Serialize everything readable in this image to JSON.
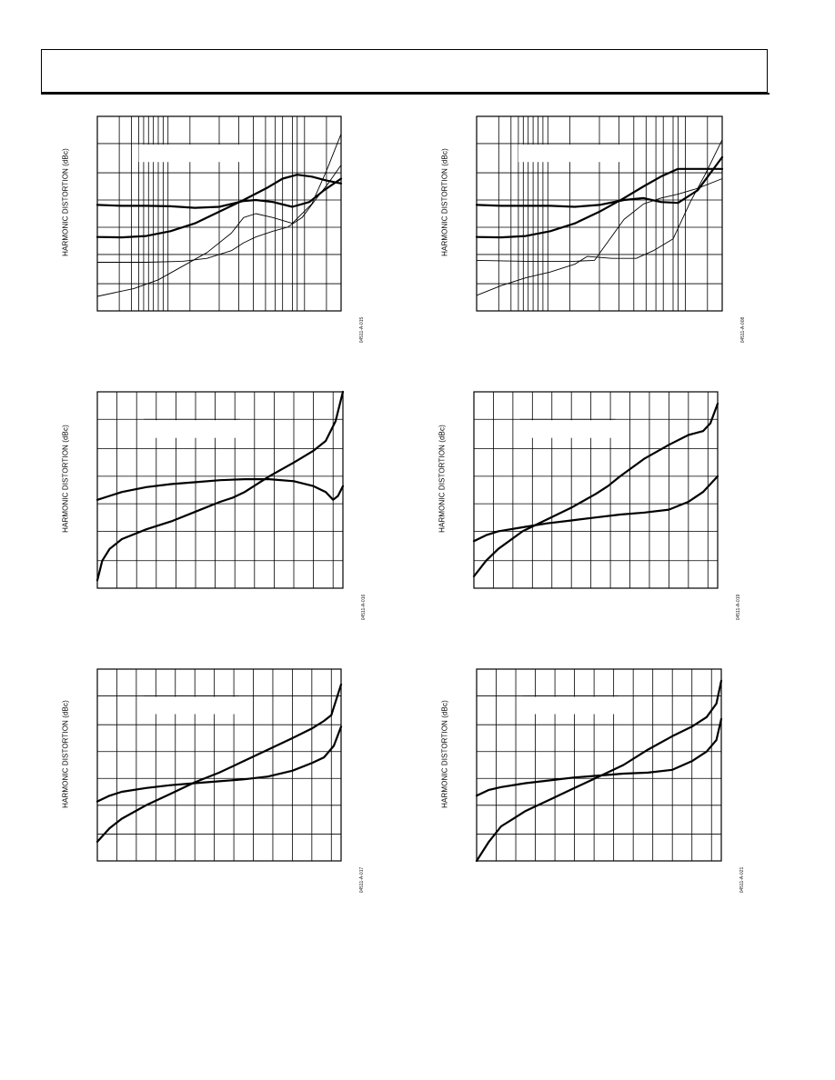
{
  "page": {
    "header_title": ""
  },
  "charts": [
    {
      "id": "c1",
      "ylabel": "HARMONIC DISTORTION (dBc)",
      "figure_id": "04511-A-015",
      "x_scale": "log",
      "series_style": [
        "thick",
        "thick",
        "thin",
        "thin"
      ]
    },
    {
      "id": "c2",
      "ylabel": "HARMONIC DISTORTION (dBc)",
      "figure_id": "04511-A-008",
      "x_scale": "log",
      "series_style": [
        "thick",
        "thick",
        "thin",
        "thin"
      ]
    },
    {
      "id": "c3",
      "ylabel": "HARMONIC DISTORTION (dBc)",
      "figure_id": "04511-A-016",
      "x_scale": "linear",
      "series_style": [
        "thick",
        "thick"
      ]
    },
    {
      "id": "c4",
      "ylabel": "HARMONIC DISTORTION (dBc)",
      "figure_id": "04511-A-019",
      "x_scale": "linear",
      "series_style": [
        "thick",
        "thick"
      ]
    },
    {
      "id": "c5",
      "ylabel": "HARMONIC DISTORTION (dBc)",
      "figure_id": "04511-A-017",
      "x_scale": "linear",
      "series_style": [
        "thick",
        "thick"
      ]
    },
    {
      "id": "c6",
      "ylabel": "HARMONIC DISTORTION (dBc)",
      "figure_id": "04511-A-021",
      "x_scale": "linear",
      "series_style": [
        "thick",
        "thick"
      ]
    }
  ],
  "chart_data": [
    {
      "type": "line",
      "title": "",
      "ylabel": "HARMONIC DISTORTION (dBc)",
      "xlabel": "",
      "x_scale": "log",
      "xlim": [
        0,
        1
      ],
      "ylim": [
        0,
        1
      ],
      "grid": true,
      "series": [
        {
          "x": [
            0,
            0.1,
            0.2,
            0.3,
            0.4,
            0.5,
            0.55,
            0.6,
            0.65,
            0.72,
            0.8,
            0.87,
            0.93,
            1.0
          ],
          "y": [
            0.545,
            0.54,
            0.54,
            0.538,
            0.53,
            0.535,
            0.55,
            0.565,
            0.57,
            0.56,
            0.535,
            0.56,
            0.62,
            0.68
          ]
        },
        {
          "x": [
            0,
            0.1,
            0.2,
            0.3,
            0.4,
            0.5,
            0.6,
            0.7,
            0.76,
            0.82,
            0.88,
            0.94,
            1.0
          ],
          "y": [
            0.38,
            0.378,
            0.385,
            0.41,
            0.45,
            0.51,
            0.57,
            0.635,
            0.68,
            0.7,
            0.69,
            0.67,
            0.655
          ]
        },
        {
          "x": [
            0,
            0.15,
            0.25,
            0.35,
            0.45,
            0.55,
            0.6,
            0.65,
            0.72,
            0.8,
            0.88,
            0.94,
            1.0
          ],
          "y": [
            0.075,
            0.115,
            0.16,
            0.23,
            0.3,
            0.4,
            0.48,
            0.5,
            0.48,
            0.45,
            0.55,
            0.72,
            0.91
          ]
        },
        {
          "x": [
            0,
            0.2,
            0.35,
            0.45,
            0.55,
            0.6,
            0.65,
            0.72,
            0.78,
            0.84,
            0.9,
            0.95,
            1.0
          ],
          "y": [
            0.25,
            0.25,
            0.255,
            0.27,
            0.31,
            0.35,
            0.38,
            0.41,
            0.43,
            0.48,
            0.58,
            0.66,
            0.75
          ]
        }
      ]
    },
    {
      "type": "line",
      "title": "",
      "ylabel": "HARMONIC DISTORTION (dBc)",
      "xlabel": "",
      "x_scale": "log",
      "xlim": [
        0,
        1
      ],
      "ylim": [
        0,
        1
      ],
      "grid": true,
      "series": [
        {
          "x": [
            0,
            0.1,
            0.2,
            0.3,
            0.4,
            0.5,
            0.6,
            0.68,
            0.75,
            0.82,
            0.9,
            1.0
          ],
          "y": [
            0.545,
            0.54,
            0.54,
            0.54,
            0.535,
            0.545,
            0.57,
            0.58,
            0.56,
            0.555,
            0.62,
            0.79
          ]
        },
        {
          "x": [
            0,
            0.1,
            0.2,
            0.3,
            0.4,
            0.5,
            0.6,
            0.68,
            0.75,
            0.82,
            0.9,
            1.0
          ],
          "y": [
            0.38,
            0.378,
            0.385,
            0.41,
            0.45,
            0.51,
            0.58,
            0.64,
            0.69,
            0.73,
            0.73,
            0.73
          ]
        },
        {
          "x": [
            0,
            0.2,
            0.4,
            0.48,
            0.52,
            0.6,
            0.68,
            0.75,
            0.82,
            0.9,
            1.0
          ],
          "y": [
            0.26,
            0.255,
            0.255,
            0.26,
            0.33,
            0.47,
            0.55,
            0.58,
            0.6,
            0.63,
            0.68
          ]
        },
        {
          "x": [
            0,
            0.1,
            0.2,
            0.3,
            0.4,
            0.45,
            0.55,
            0.65,
            0.72,
            0.8,
            0.87,
            0.93,
            1.0
          ],
          "y": [
            0.08,
            0.13,
            0.17,
            0.2,
            0.24,
            0.28,
            0.27,
            0.27,
            0.31,
            0.37,
            0.56,
            0.7,
            0.88
          ]
        }
      ]
    },
    {
      "type": "line",
      "title": "",
      "ylabel": "HARMONIC DISTORTION (dBc)",
      "xlabel": "",
      "x_scale": "linear",
      "xlim": [
        0,
        1
      ],
      "ylim": [
        0,
        1
      ],
      "grid": true,
      "series": [
        {
          "x": [
            0,
            0.05,
            0.1,
            0.2,
            0.3,
            0.4,
            0.5,
            0.6,
            0.7,
            0.8,
            0.88,
            0.93,
            0.96,
            0.98,
            1.0
          ],
          "y": [
            0.45,
            0.47,
            0.49,
            0.515,
            0.53,
            0.54,
            0.55,
            0.555,
            0.555,
            0.545,
            0.52,
            0.49,
            0.45,
            0.47,
            0.52
          ]
        },
        {
          "x": [
            0,
            0.02,
            0.05,
            0.1,
            0.2,
            0.3,
            0.4,
            0.5,
            0.55,
            0.6,
            0.7,
            0.8,
            0.88,
            0.93,
            0.97,
            1.0
          ],
          "y": [
            0.04,
            0.14,
            0.2,
            0.25,
            0.3,
            0.34,
            0.39,
            0.44,
            0.46,
            0.49,
            0.57,
            0.64,
            0.7,
            0.75,
            0.85,
            1.0
          ]
        }
      ]
    },
    {
      "type": "line",
      "title": "",
      "ylabel": "HARMONIC DISTORTION (dBc)",
      "xlabel": "",
      "x_scale": "linear",
      "xlim": [
        0,
        1
      ],
      "ylim": [
        0,
        1
      ],
      "grid": true,
      "series": [
        {
          "x": [
            0,
            0.05,
            0.1,
            0.2,
            0.3,
            0.4,
            0.5,
            0.6,
            0.7,
            0.8,
            0.88,
            0.94,
            1.0
          ],
          "y": [
            0.24,
            0.27,
            0.29,
            0.31,
            0.33,
            0.345,
            0.36,
            0.375,
            0.385,
            0.4,
            0.44,
            0.49,
            0.57
          ]
        },
        {
          "x": [
            0,
            0.05,
            0.1,
            0.2,
            0.3,
            0.4,
            0.5,
            0.55,
            0.6,
            0.7,
            0.8,
            0.88,
            0.94,
            0.97,
            1.0
          ],
          "y": [
            0.06,
            0.14,
            0.2,
            0.29,
            0.35,
            0.41,
            0.48,
            0.52,
            0.57,
            0.66,
            0.73,
            0.78,
            0.8,
            0.84,
            0.94
          ]
        }
      ]
    },
    {
      "type": "line",
      "title": "",
      "ylabel": "HARMONIC DISTORTION (dBc)",
      "xlabel": "",
      "x_scale": "linear",
      "xlim": [
        0,
        1
      ],
      "ylim": [
        0,
        1
      ],
      "grid": true,
      "series": [
        {
          "x": [
            0,
            0.05,
            0.1,
            0.2,
            0.3,
            0.4,
            0.5,
            0.6,
            0.7,
            0.8,
            0.88,
            0.93,
            0.97,
            1.0
          ],
          "y": [
            0.31,
            0.34,
            0.36,
            0.38,
            0.395,
            0.405,
            0.415,
            0.425,
            0.44,
            0.47,
            0.51,
            0.54,
            0.6,
            0.7
          ]
        },
        {
          "x": [
            0,
            0.05,
            0.1,
            0.2,
            0.3,
            0.4,
            0.5,
            0.6,
            0.7,
            0.8,
            0.88,
            0.93,
            0.96,
            0.98,
            1.0
          ],
          "y": [
            0.1,
            0.17,
            0.22,
            0.29,
            0.35,
            0.41,
            0.46,
            0.52,
            0.58,
            0.64,
            0.69,
            0.73,
            0.76,
            0.84,
            0.92
          ]
        }
      ]
    },
    {
      "type": "line",
      "title": "",
      "ylabel": "HARMONIC DISTORTION (dBc)",
      "xlabel": "",
      "x_scale": "linear",
      "xlim": [
        0,
        1
      ],
      "ylim": [
        0,
        1
      ],
      "grid": true,
      "series": [
        {
          "x": [
            0,
            0.05,
            0.1,
            0.2,
            0.3,
            0.4,
            0.5,
            0.6,
            0.7,
            0.8,
            0.88,
            0.94,
            0.98,
            1.0
          ],
          "y": [
            0.34,
            0.37,
            0.385,
            0.405,
            0.42,
            0.435,
            0.445,
            0.455,
            0.46,
            0.475,
            0.52,
            0.57,
            0.63,
            0.74
          ]
        },
        {
          "x": [
            0,
            0.05,
            0.1,
            0.15,
            0.2,
            0.3,
            0.4,
            0.5,
            0.6,
            0.7,
            0.8,
            0.88,
            0.94,
            0.98,
            1.0
          ],
          "y": [
            0.0,
            0.1,
            0.18,
            0.22,
            0.26,
            0.32,
            0.38,
            0.44,
            0.5,
            0.58,
            0.65,
            0.7,
            0.75,
            0.82,
            0.94
          ]
        }
      ]
    }
  ]
}
